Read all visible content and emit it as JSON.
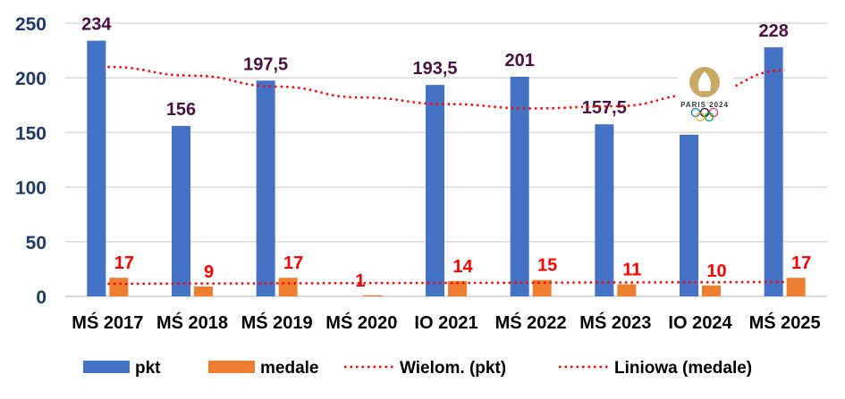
{
  "chart_data": {
    "type": "bar",
    "categories": [
      "MŚ 2017",
      "MŚ 2018",
      "MŚ 2019",
      "MŚ 2020",
      "IO 2021",
      "MŚ 2022",
      "MŚ 2023",
      "IO 2024",
      "MŚ 2025"
    ],
    "series": [
      {
        "name": "pkt",
        "color": "#4472c4",
        "values": [
          234,
          156,
          197.5,
          0,
          193.5,
          201,
          157.5,
          148,
          228
        ],
        "labels": [
          "234",
          "156",
          "197,5",
          "",
          "193,5",
          "201",
          "157,5",
          "",
          "228"
        ]
      },
      {
        "name": "medale",
        "color": "#ed7d31",
        "values": [
          17,
          9,
          17,
          1,
          14,
          15,
          11,
          10,
          17
        ],
        "labels": [
          "17",
          "9",
          "17",
          "1",
          "14",
          "15",
          "11",
          "10",
          "17"
        ]
      }
    ],
    "trendlines": [
      {
        "name": "Wielom. (pkt)",
        "type": "polynomial",
        "color": "#ff0000",
        "values": [
          210,
          202,
          192,
          182,
          176,
          172,
          174,
          185,
          207
        ]
      },
      {
        "name": "Liniowa (medale)",
        "type": "linear",
        "color": "#ff0000",
        "values": [
          11.5,
          11.7,
          11.9,
          12.1,
          12.3,
          12.5,
          12.7,
          12.9,
          13.1
        ]
      }
    ],
    "yticks": [
      0,
      50,
      100,
      150,
      200,
      250
    ],
    "ylim": [
      0,
      250
    ],
    "grid": true,
    "legend": "bottom",
    "annotation_logo": "PARIS 2024"
  }
}
